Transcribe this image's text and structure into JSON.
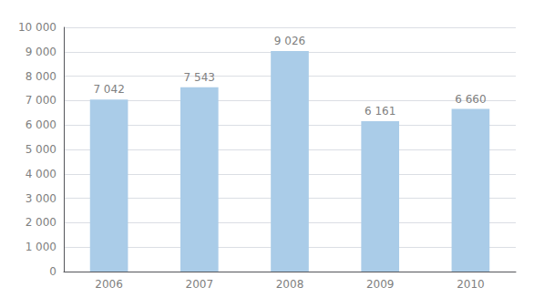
{
  "chart_data": {
    "type": "bar",
    "categories": [
      "2006",
      "2007",
      "2008",
      "2009",
      "2010"
    ],
    "values": [
      7042,
      7543,
      9026,
      6161,
      6660
    ],
    "value_labels": [
      "7 042",
      "7 543",
      "9 026",
      "6 161",
      "6 660"
    ],
    "data_labels": true,
    "color": "#aacce8",
    "ylim": [
      0,
      10000
    ],
    "yticks": [
      0,
      {
        "value": 1000,
        "label": "1 000"
      },
      {
        "value": 2000,
        "label": "2 000"
      },
      {
        "value": 3000,
        "label": "3 000"
      },
      {
        "value": 4000,
        "label": "4 000"
      },
      {
        "value": 5000,
        "label": "5 000"
      },
      {
        "value": 6000,
        "label": "6 000"
      },
      {
        "value": 7000,
        "label": "7 000"
      },
      {
        "value": 8000,
        "label": "8 000"
      },
      {
        "value": 9000,
        "label": "9 000"
      },
      {
        "value": 10000,
        "label": "10 000"
      }
    ],
    "grid": true
  }
}
